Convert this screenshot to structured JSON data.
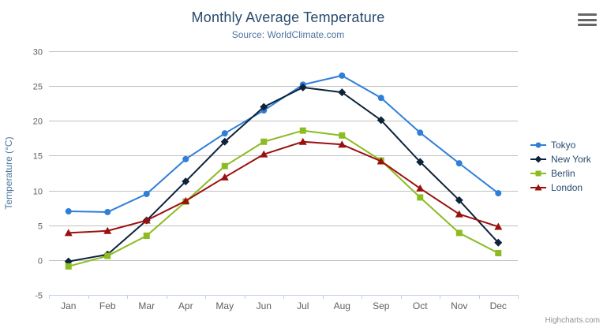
{
  "chart_data": {
    "type": "line",
    "title": "Monthly Average Temperature",
    "subtitle": "Source: WorldClimate.com",
    "categories": [
      "Jan",
      "Feb",
      "Mar",
      "Apr",
      "May",
      "Jun",
      "Jul",
      "Aug",
      "Sep",
      "Oct",
      "Nov",
      "Dec"
    ],
    "series": [
      {
        "name": "Tokyo",
        "color": "#2f7ed8",
        "marker": "circle",
        "values": [
          7.0,
          6.9,
          9.5,
          14.5,
          18.2,
          21.5,
          25.2,
          26.5,
          23.3,
          18.3,
          13.9,
          9.6
        ]
      },
      {
        "name": "New York",
        "color": "#0d233a",
        "marker": "diamond",
        "values": [
          -0.2,
          0.8,
          5.7,
          11.3,
          17.0,
          22.0,
          24.8,
          24.1,
          20.1,
          14.1,
          8.6,
          2.5
        ]
      },
      {
        "name": "Berlin",
        "color": "#8bbc21",
        "marker": "square",
        "values": [
          -0.9,
          0.6,
          3.5,
          8.4,
          13.5,
          17.0,
          18.6,
          17.9,
          14.3,
          9.0,
          3.9,
          1.0
        ]
      },
      {
        "name": "London",
        "color": "#9c0f0f",
        "marker": "triangle",
        "values": [
          3.9,
          4.2,
          5.7,
          8.5,
          11.9,
          15.2,
          17.0,
          16.6,
          14.2,
          10.3,
          6.6,
          4.8
        ]
      }
    ],
    "xlabel": "",
    "ylabel": "Temperature (°C)",
    "ylim": [
      -5,
      30
    ],
    "ytick_step": 5,
    "grid": true,
    "legend_position": "right"
  },
  "credits": "Highcharts.com",
  "colors": {
    "title": "#274b6d",
    "subtitle": "#4d759e",
    "axis_label": "#606060",
    "axis_title": "#4d759e",
    "gridline": "#c0c0c0",
    "axis_line": "#c0d0e0",
    "legend_text": "#274b6d",
    "credits": "#909090",
    "menu_icon": "#666666",
    "background": "#ffffff"
  }
}
